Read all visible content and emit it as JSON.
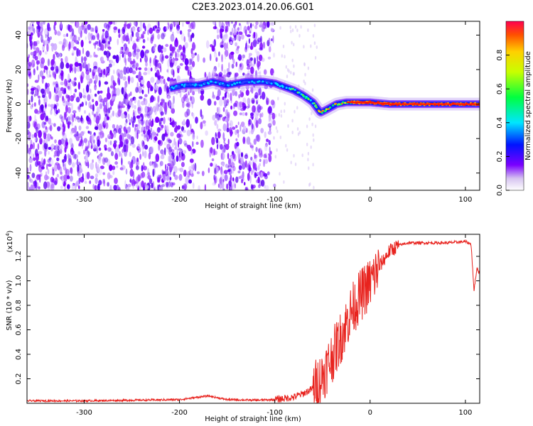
{
  "figure_title": "C2E3.2023.014.20.06.G01",
  "chart_data": [
    {
      "type": "heatmap",
      "title": "",
      "xlabel": "Height of straight line (km)",
      "ylabel": "Frequency (Hz)",
      "xlim": [
        -360,
        115
      ],
      "ylim": [
        -50,
        48
      ],
      "xticks": [
        -300,
        -200,
        -100,
        0,
        100
      ],
      "yticks": [
        -40,
        -20,
        0,
        20,
        40
      ],
      "noise_region": [
        -360,
        -100
      ],
      "signal_track": {
        "x": [
          -210,
          -195,
          -180,
          -165,
          -150,
          -130,
          -112,
          -100,
          -90,
          -80,
          -70,
          -60,
          -52,
          -45,
          -35,
          -25,
          -15,
          0,
          20,
          60,
          115
        ],
        "y": [
          9,
          11,
          11,
          13,
          11,
          13,
          13,
          12,
          10,
          8,
          5,
          1,
          -5,
          -3,
          0,
          1,
          1,
          1,
          0,
          0,
          0
        ]
      },
      "colorbar": {
        "label": "Normalized spectral amplitude",
        "range": [
          0,
          1
        ],
        "ticks": [
          "0.0",
          "0.2",
          "0.4",
          "0.6",
          "0.8"
        ]
      },
      "grid": false
    },
    {
      "type": "line",
      "title": "",
      "xlabel": "Height of straight line (km)",
      "ylabel": "SNR (10 * v/v)",
      "y_multiplier": "(x10",
      "y_multiplier_exp": "4",
      "xlim": [
        -360,
        115
      ],
      "ylim": [
        0,
        1.38
      ],
      "xticks": [
        -300,
        -200,
        -100,
        0,
        100
      ],
      "yticks": [
        "0.2",
        "0.4",
        "0.6",
        "0.8",
        "1.0",
        "1.2"
      ],
      "series": [
        {
          "color": "#e8231e",
          "x": [
            -360,
            -300,
            -250,
            -200,
            -180,
            -170,
            -150,
            -120,
            -100,
            -80,
            -70,
            -60,
            -50,
            -40,
            -30,
            -20,
            -10,
            0,
            10,
            20,
            30,
            40,
            60,
            80,
            100,
            106,
            109,
            112,
            115
          ],
          "y": [
            0.02,
            0.02,
            0.025,
            0.03,
            0.05,
            0.06,
            0.03,
            0.025,
            0.03,
            0.05,
            0.08,
            0.12,
            0.22,
            0.38,
            0.55,
            0.75,
            0.88,
            0.98,
            1.12,
            1.24,
            1.29,
            1.31,
            1.31,
            1.31,
            1.32,
            1.3,
            0.92,
            1.1,
            1.06
          ]
        }
      ],
      "grid": false
    }
  ]
}
